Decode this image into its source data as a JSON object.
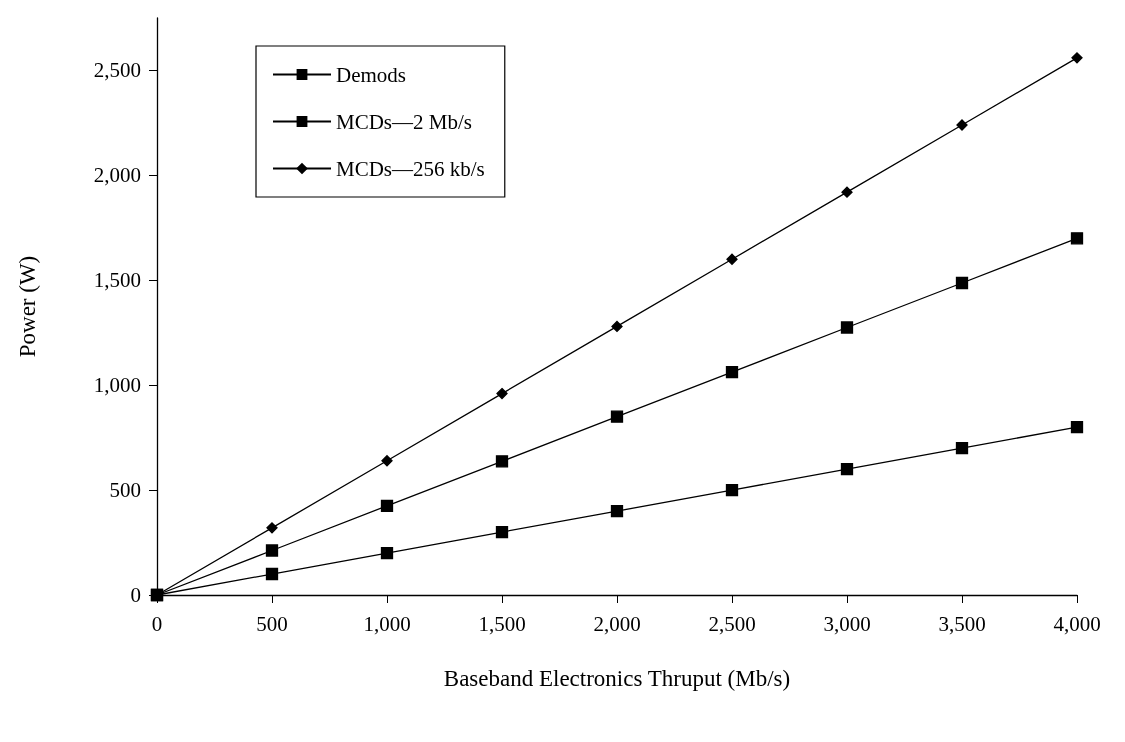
{
  "chart_data": {
    "type": "line",
    "xlabel": "Baseband Electronics Thruput (Mb/s)",
    "ylabel": "Power (W)",
    "x": [
      0,
      500,
      1000,
      1500,
      2000,
      2500,
      3000,
      3500,
      4000
    ],
    "series": [
      {
        "name": "Demods",
        "color": "#000000",
        "marker": "square",
        "values": [
          0,
          100,
          200,
          300,
          400,
          500,
          600,
          700,
          800
        ]
      },
      {
        "name": "MCDs—2 Mb/s",
        "color": "#000000",
        "marker": "square",
        "values": [
          0,
          212,
          425,
          637,
          850,
          1062,
          1275,
          1487,
          1700
        ]
      },
      {
        "name": "MCDs—256 kb/s",
        "color": "#000000",
        "marker": "diamond",
        "values": [
          0,
          320,
          640,
          960,
          1280,
          1600,
          1920,
          2240,
          2560
        ]
      }
    ],
    "xlim": [
      0,
      4000
    ],
    "xticks": [
      0,
      500,
      {
        "value": 1000,
        "label": "1,000"
      },
      {
        "value": 1500,
        "label": "1,500"
      },
      {
        "value": 2000,
        "label": "2,000"
      },
      {
        "value": 2500,
        "label": "2,500"
      },
      {
        "value": 3000,
        "label": "3,000"
      },
      {
        "value": 3500,
        "label": "3,500"
      },
      {
        "value": 4000,
        "label": "4,000"
      }
    ],
    "ylim": [
      0,
      2750
    ],
    "yticks": [
      0,
      500,
      {
        "value": 1000,
        "label": "1,000"
      },
      {
        "value": 1500,
        "label": "1,500"
      },
      {
        "value": 2000,
        "label": "2,000"
      },
      {
        "value": 2500,
        "label": "2,500"
      }
    ],
    "grid": false,
    "legend": "top left",
    "line_style": "solid"
  }
}
